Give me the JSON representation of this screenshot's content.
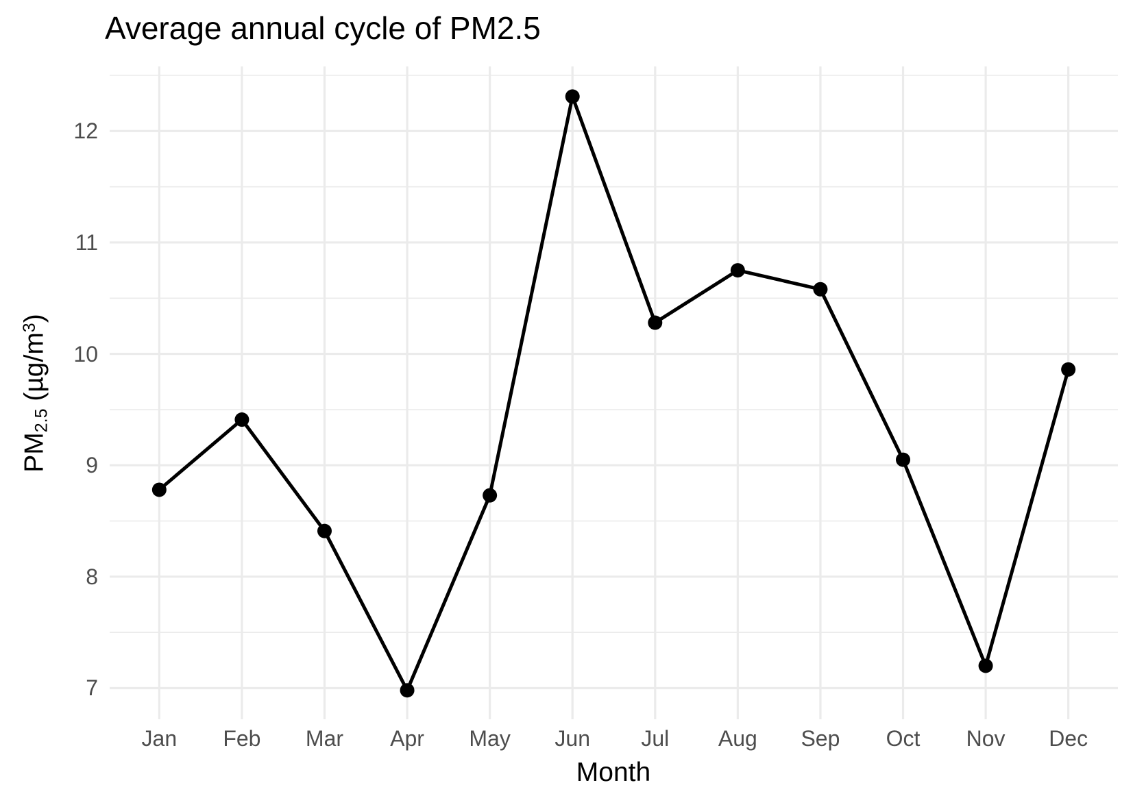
{
  "chart_data": {
    "type": "line",
    "title": "Average annual cycle of PM2.5",
    "xlabel": "Month",
    "ylabel": "PM2.5 (µg/m³)",
    "categories": [
      "Jan",
      "Feb",
      "Mar",
      "Apr",
      "May",
      "Jun",
      "Jul",
      "Aug",
      "Sep",
      "Oct",
      "Nov",
      "Dec"
    ],
    "values": [
      8.78,
      9.41,
      8.41,
      6.98,
      8.73,
      12.31,
      10.28,
      10.75,
      10.58,
      9.05,
      7.2,
      9.86
    ],
    "ylim": [
      6.72,
      12.58
    ],
    "y_ticks": [
      7,
      8,
      9,
      10,
      11,
      12
    ],
    "y_tick_labels": [
      "7",
      "8",
      "9",
      "10",
      "11",
      "12"
    ],
    "y_minor_ticks": [
      7.5,
      8.5,
      9.5,
      10.5,
      11.5,
      12.5
    ],
    "grid": true,
    "legend": false,
    "colors": {
      "line": "#000000",
      "point": "#000000",
      "grid": "#EBEBEB",
      "tick_label": "#4D4D4D",
      "title": "#000000",
      "axis_title": "#000000",
      "background": "#FFFFFF"
    }
  },
  "y_axis_title_parts": {
    "prefix": "PM",
    "subscript": "2.5",
    "mid": " (µg/m",
    "superscript": "3",
    "suffix": ")"
  }
}
